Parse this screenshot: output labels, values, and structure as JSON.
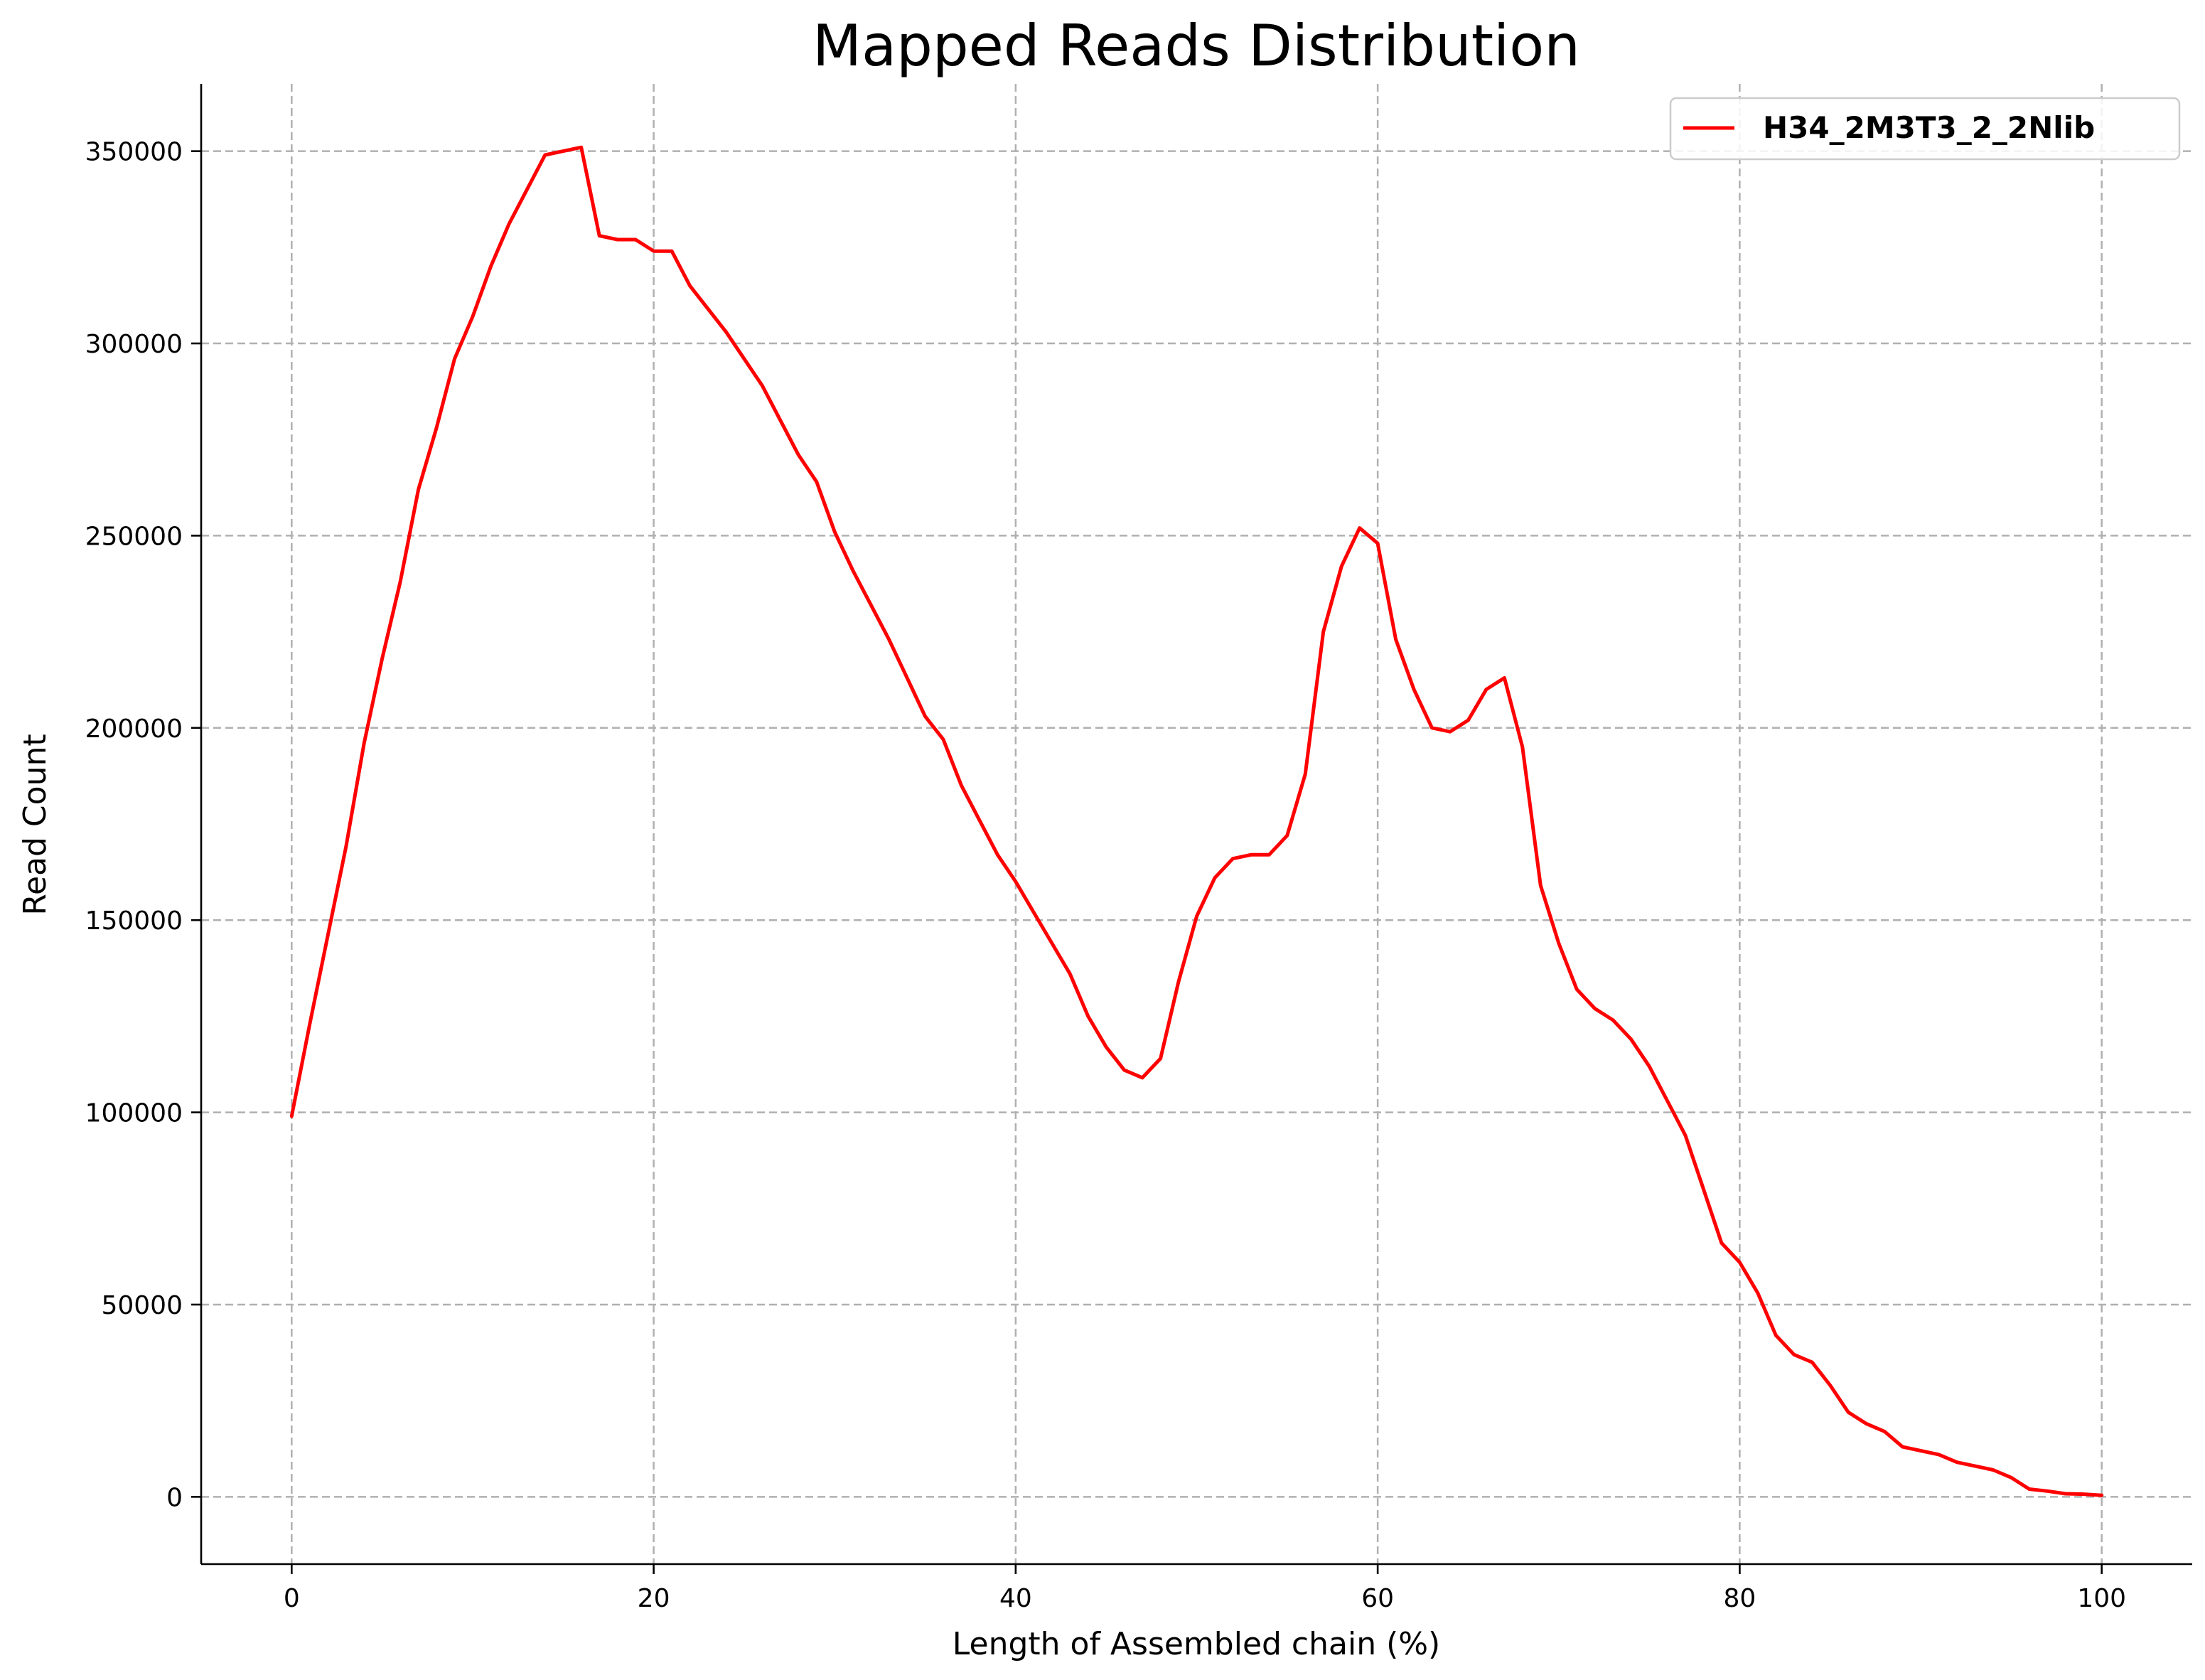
{
  "chart_data": {
    "type": "line",
    "title": "Mapped Reads Distribution",
    "xlabel": "Length of Assembled chain (%)",
    "ylabel": "Read Count",
    "xlim": [
      -5,
      105
    ],
    "ylim": [
      -17500,
      367500
    ],
    "xticks": [
      0,
      20,
      40,
      60,
      80,
      100
    ],
    "yticks": [
      0,
      50000,
      100000,
      150000,
      200000,
      250000,
      300000,
      350000
    ],
    "grid": true,
    "grid_style": "dashed",
    "legend_position": "top-right",
    "series": [
      {
        "name": "H34_2M3T3_2_2Nlib",
        "color": "#ff0000",
        "x": [
          0,
          1,
          2,
          3,
          4,
          5,
          6,
          7,
          8,
          9,
          10,
          11,
          12,
          13,
          14,
          15,
          16,
          17,
          18,
          19,
          20,
          21,
          22,
          23,
          24,
          25,
          26,
          27,
          28,
          29,
          30,
          31,
          32,
          33,
          34,
          35,
          36,
          37,
          38,
          39,
          40,
          41,
          42,
          43,
          44,
          45,
          46,
          47,
          48,
          49,
          50,
          51,
          52,
          53,
          54,
          55,
          56,
          57,
          58,
          59,
          60,
          61,
          62,
          63,
          64,
          65,
          66,
          67,
          68,
          69,
          70,
          71,
          72,
          73,
          74,
          75,
          76,
          77,
          78,
          79,
          80,
          81,
          82,
          83,
          84,
          85,
          86,
          87,
          88,
          89,
          90,
          91,
          92,
          93,
          94,
          95,
          96,
          97,
          98,
          99,
          100
        ],
        "y": [
          99000,
          123000,
          146000,
          169000,
          196000,
          218000,
          238000,
          262000,
          278000,
          296000,
          307000,
          320000,
          331000,
          340000,
          349000,
          350000,
          351000,
          328000,
          327000,
          327000,
          324000,
          324000,
          315000,
          309000,
          303000,
          296000,
          289000,
          280000,
          271000,
          264000,
          251000,
          241000,
          232000,
          223000,
          213000,
          203000,
          197000,
          185000,
          176000,
          167000,
          160000,
          152000,
          144000,
          136000,
          125000,
          117000,
          111000,
          109000,
          114000,
          134000,
          151000,
          161000,
          166000,
          167000,
          167000,
          172000,
          188000,
          225000,
          242000,
          252000,
          248000,
          223000,
          210000,
          200000,
          199000,
          202000,
          210000,
          213000,
          195000,
          159000,
          144000,
          132000,
          127000,
          124000,
          119000,
          112000,
          103000,
          94000,
          80000,
          66000,
          61000,
          53000,
          42000,
          37000,
          35000,
          29000,
          22000,
          19000,
          17000,
          13000,
          12000,
          11000,
          9000,
          8000,
          7000,
          5000,
          2000,
          1500,
          800,
          700,
          400
        ]
      }
    ]
  }
}
